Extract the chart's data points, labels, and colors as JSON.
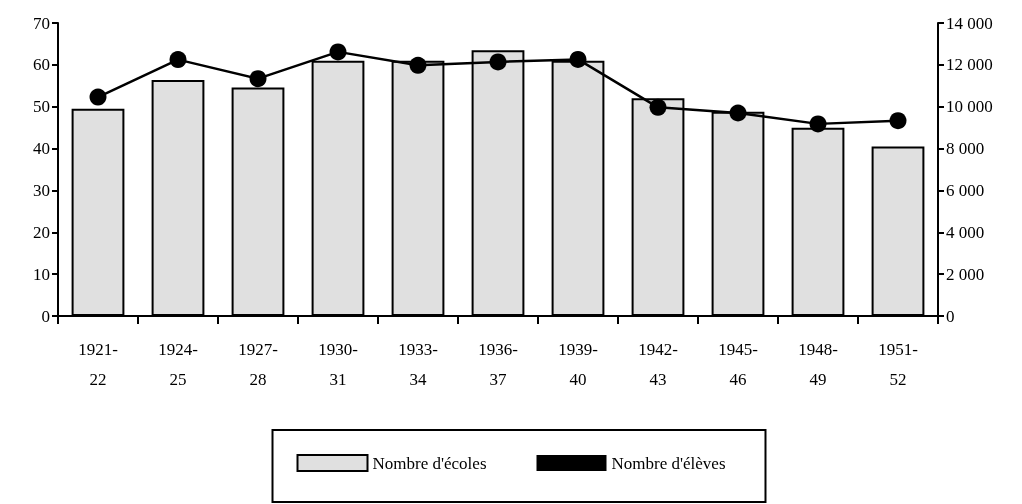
{
  "chart_data": {
    "type": "bar",
    "categories": [
      "1921-22",
      "1924-25",
      "1927-28",
      "1930-31",
      "1933-34",
      "1936-37",
      "1939-40",
      "1942-43",
      "1945-46",
      "1948-49",
      "1951-52"
    ],
    "series": [
      {
        "name": "Nombre d'écoles",
        "color": "#e0e0e0",
        "values": [
          49.5,
          56.4,
          54.6,
          61.0,
          61.0,
          63.5,
          61.0,
          52.0,
          48.8,
          45.0,
          40.5
        ]
      },
      {
        "name": "Nombre d'élèves",
        "type": "line",
        "axis": "y2",
        "color": "#000000",
        "values": [
          10460,
          12250,
          11340,
          12620,
          11980,
          12140,
          12260,
          9970,
          9700,
          9180,
          9330
        ]
      }
    ],
    "ylim": [
      0,
      70
    ],
    "yticks": [
      0,
      10,
      20,
      30,
      40,
      50,
      60,
      70
    ],
    "y2lim": [
      0,
      14000
    ],
    "y2ticks": [
      0,
      {
        "value": 2000,
        "label": "2 000"
      },
      {
        "value": 4000,
        "label": "4 000"
      },
      {
        "value": 6000,
        "label": "6 000"
      },
      {
        "value": 8000,
        "label": "8 000"
      },
      {
        "value": 10000,
        "label": "10 000"
      },
      {
        "value": 12000,
        "label": "12 000"
      },
      {
        "value": 14000,
        "label": "14 000"
      }
    ],
    "grid": false,
    "legend": "bottom",
    "marker": "circle",
    "line_style": "solid"
  }
}
